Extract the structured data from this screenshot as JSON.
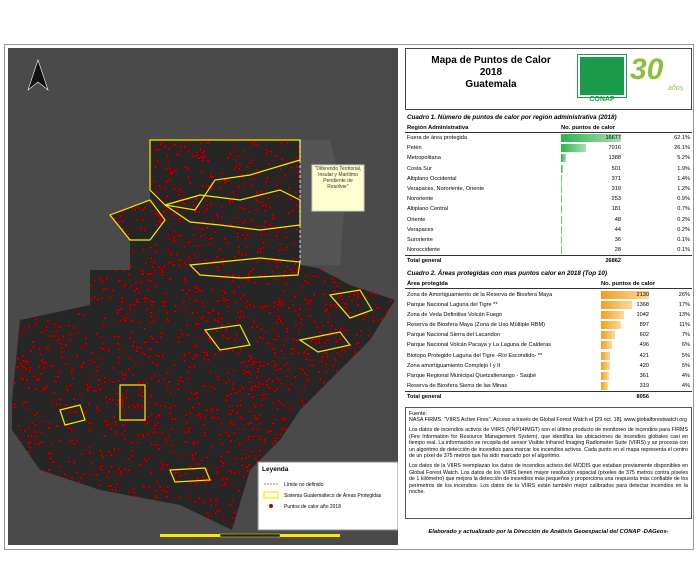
{
  "header": {
    "title_lines": [
      "Mapa de Puntos de Calor",
      "2018",
      "Guatemala"
    ],
    "logo_text": "CONAP",
    "anniversary": "30",
    "anniversary_sub": "años"
  },
  "map": {
    "annotation": "\"Diferendo Territorial, Insular y Marítimo Pendiente de Resolver\"",
    "legend": {
      "title": "Leyenda",
      "items": [
        "Límite no definido",
        "Sistema Guatemalteco de Áreas Protegidas",
        "Puntos de calor año 2018"
      ]
    }
  },
  "table1": {
    "title": "Cuadro 1. Número de puntos de calor por región administrativa (2018)",
    "columns": [
      "Región Administrativa",
      "No. puntos de calor"
    ],
    "rows": [
      {
        "name": "Fuera de área protegida",
        "count": 16677,
        "percent": "62.1%"
      },
      {
        "name": "Petén",
        "count": 7016,
        "percent": "26.1%"
      },
      {
        "name": "Metropolitana",
        "count": 1388,
        "percent": "5.2%"
      },
      {
        "name": "Costa Sur",
        "count": 501,
        "percent": "1.9%"
      },
      {
        "name": "Altiplano Occidental",
        "count": 371,
        "percent": "1.4%"
      },
      {
        "name": "Verapaces, Nororiente, Oriente",
        "count": 319,
        "percent": "1.2%"
      },
      {
        "name": "Nororiente",
        "count": 253,
        "percent": "0.9%"
      },
      {
        "name": "Altiplano Central",
        "count": 181,
        "percent": "0.7%"
      },
      {
        "name": "Oriente",
        "count": 48,
        "percent": "0.2%"
      },
      {
        "name": "Verapaces",
        "count": 44,
        "percent": "0.2%"
      },
      {
        "name": "Suroriente",
        "count": 36,
        "percent": "0.1%"
      },
      {
        "name": "Noroccidente",
        "count": 28,
        "percent": "0.1%"
      }
    ],
    "total": {
      "label": "Total general",
      "count": 26862
    }
  },
  "table2": {
    "title": "Cuadro 2. Áreas protegidas con mas puntos calor en 2018 (Top 10)",
    "columns": [
      "Área protegida",
      "No. puntos de calor"
    ],
    "rows": [
      {
        "name": "Zona de Amortiguamiento de la Reserva de Biosfera Maya",
        "count": 2130,
        "percent": "26%"
      },
      {
        "name": "Parque Nacional Laguna del Tigre **",
        "count": 1368,
        "percent": "17%"
      },
      {
        "name": "Zona de Veda Definitiva Volcán Fuego",
        "count": 1042,
        "percent": "13%"
      },
      {
        "name": "Reserva de Biosfera Maya (Zona de Uso Múltiple RBM)",
        "count": 897,
        "percent": "11%"
      },
      {
        "name": "Parque Nacional Sierra del Lacandon",
        "count": 602,
        "percent": "7%"
      },
      {
        "name": "Parque Nacional Volcán Pacaya y La Laguna de Calderas",
        "count": 496,
        "percent": "6%"
      },
      {
        "name": "Biotopo Protegido Laguna del Tigre -Río Escondido- **",
        "count": 421,
        "percent": "5%"
      },
      {
        "name": "Zona amortiguamiento Complejo I y II",
        "count": 420,
        "percent": "5%"
      },
      {
        "name": "Parque Regional Municipal Quetzaltenango - Saqbé",
        "count": 361,
        "percent": "4%"
      },
      {
        "name": "Reserva de Biosfera Sierra de las Minas",
        "count": 319,
        "percent": "4%"
      }
    ],
    "total": {
      "label": "Total general",
      "count": 8056
    }
  },
  "source": {
    "label": "Fuente:",
    "citation": "NASA FIRMS. \"VIIRS Active Fires\". Acceso a través de Global Forest Watch el [29 oct. 18]. www.globalforestwatch.org",
    "paragraphs": [
      "Los datos de incendios activos de VIIRS (VNP14IMGT) son el último producto de monitoreo de incendios para FIRMS (Fire Information for Resource Management System), que identifica las ubicaciones de incendios globales casi en tiempo real. La información se recopila del sensor Visible Infrared Imaging Radiometer Suite (VIIRS) y se procesa con un algoritmo de detección de incendios para marcar los incendios activos. Cada punto en el mapa representa el centro de un píxel de 375 metros que ha sido marcado por el algoritmo.",
      "Los datos de la VIIRS reemplazan los datos de incendios activos del MODIS que estaban previamente disponibles en Global Forest Watch. Los datos de los VIIRS tienen mayor resolución espacial (píxeles de 375 metros contra píxeles de 1 kilómetro) que mejora la detección de incendios más pequeños y proporciona una respuesta más confiable de los perímetros de los incendios. Los datos de la VIIRS están también mejor calibrados para detectar incendios en la noche."
    ]
  },
  "footer": "Elaborado y actualizado por la Dirección de Análisis Geoespacial del CONAP -DAGeos-"
}
